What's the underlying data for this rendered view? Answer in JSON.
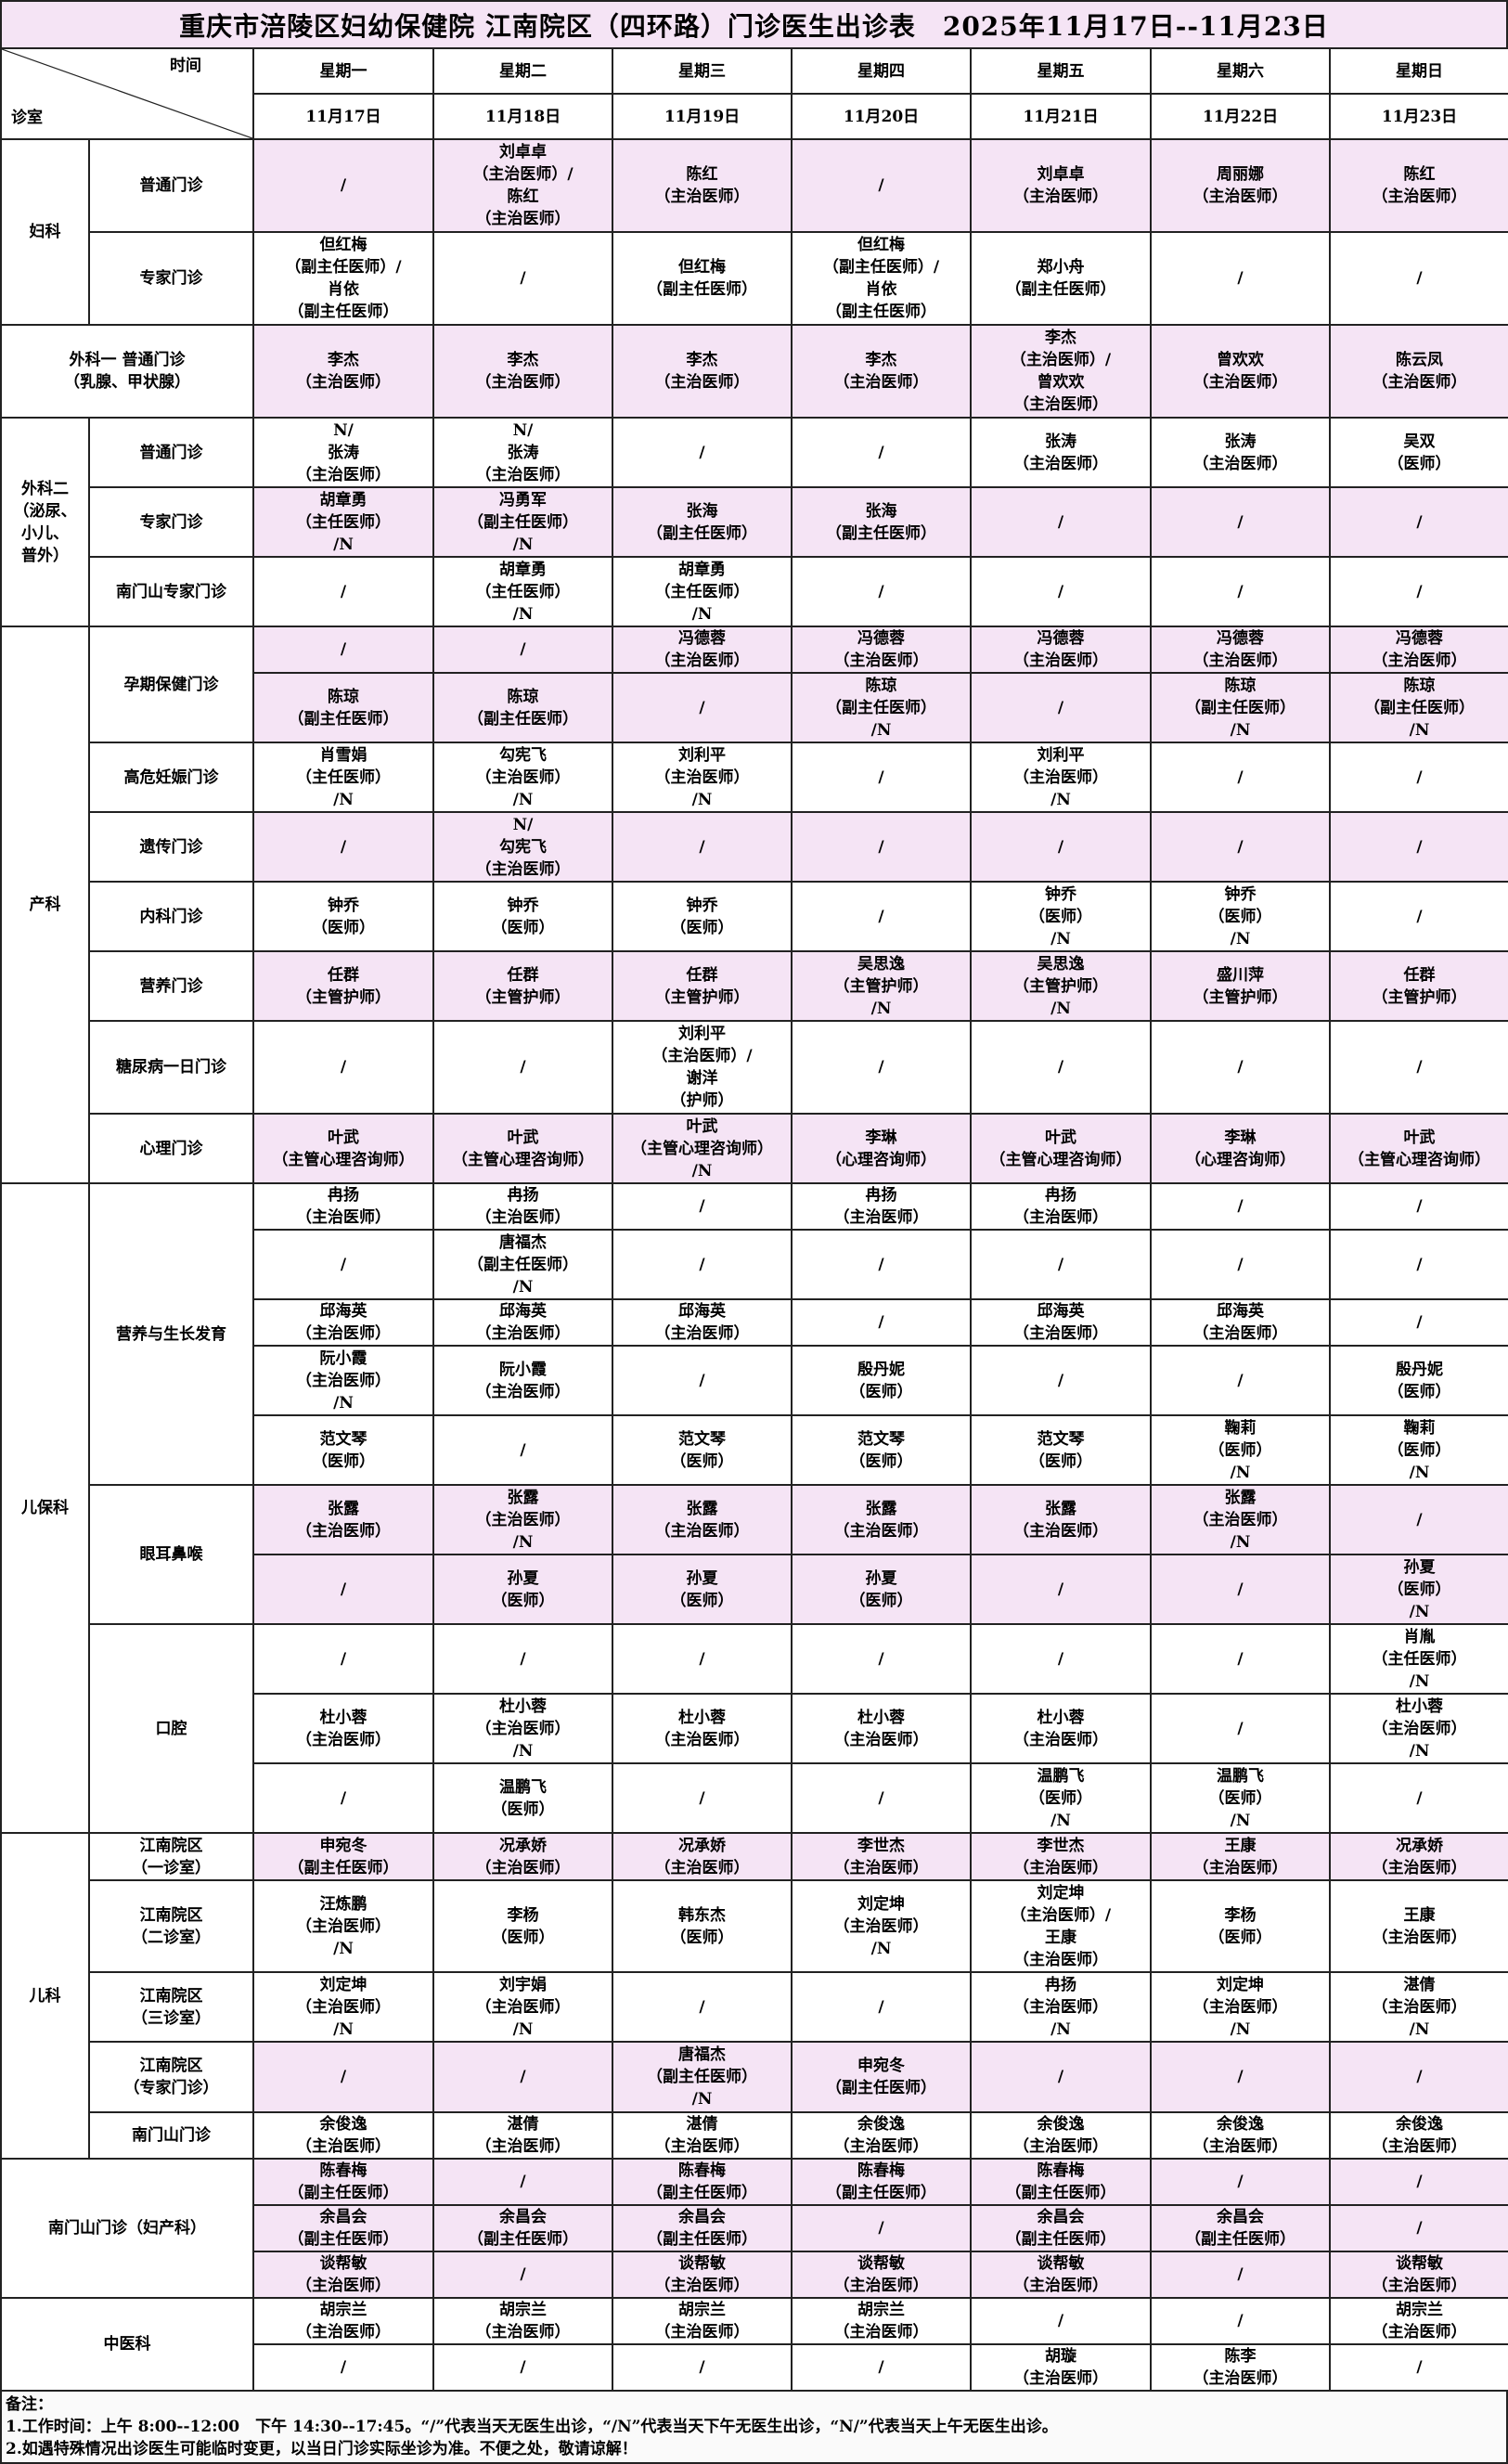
{
  "title": "重庆市涪陵区妇幼保健院 江南院区（四环路）门诊医生出诊表　2025年11月17日--11月23日",
  "header": {
    "corner_top": "时间",
    "corner_bottom": "诊室",
    "weekdays": [
      "星期一",
      "星期二",
      "星期三",
      "星期四",
      "星期五",
      "星期六",
      "星期日"
    ],
    "dates": [
      "11月17日",
      "11月18日",
      "11月19日",
      "11月20日",
      "11月21日",
      "11月22日",
      "11月23日"
    ]
  },
  "colors": {
    "highlight": "#f5e4f5",
    "border": "#222222"
  },
  "departments": [
    {
      "name": "妇科",
      "clinics": [
        {
          "name": "普通门诊",
          "highlight": true,
          "rows": [
            [
              "/",
              "刘卓卓\n（主治医师）/\n陈红\n（主治医师）",
              "陈红\n（主治医师）",
              "/",
              "刘卓卓\n（主治医师）",
              "周丽娜\n（主治医师）",
              "陈红\n（主治医师）"
            ]
          ]
        },
        {
          "name": "专家门诊",
          "highlight": false,
          "rows": [
            [
              "但红梅\n（副主任医师）/\n肖依\n（副主任医师）",
              "/",
              "但红梅\n（副主任医师）",
              "但红梅\n（副主任医师）/\n肖依\n（副主任医师）",
              "郑小舟\n（副主任医师）",
              "/",
              "/"
            ]
          ]
        }
      ]
    },
    {
      "name": "外科一 普通门诊\n（乳腺、甲状腺）",
      "merged": true,
      "clinics": [
        {
          "name": "",
          "highlight": true,
          "rows": [
            [
              "李杰\n（主治医师）",
              "李杰\n（主治医师）",
              "李杰\n（主治医师）",
              "李杰\n（主治医师）",
              "李杰\n（主治医师）/\n曾欢欢\n（主治医师）",
              "曾欢欢\n（主治医师）",
              "陈云凤\n（主治医师）"
            ]
          ]
        }
      ]
    },
    {
      "name": "外科二\n（泌尿、\n小儿、\n普外）",
      "clinics": [
        {
          "name": "普通门诊",
          "highlight": false,
          "rows": [
            [
              "N/\n张涛\n（主治医师）",
              "N/\n张涛\n（主治医师）",
              "/",
              "/",
              "张涛\n（主治医师）",
              "张涛\n（主治医师）",
              "吴双\n（医师）"
            ]
          ]
        },
        {
          "name": "专家门诊",
          "highlight": true,
          "rows": [
            [
              "胡章勇\n（主任医师）\n/N",
              "冯勇军\n（副主任医师）\n/N",
              "张海\n（副主任医师）",
              "张海\n（副主任医师）",
              "/",
              "/",
              "/"
            ]
          ]
        },
        {
          "name": "南门山专家门诊",
          "highlight": false,
          "rows": [
            [
              "/",
              "胡章勇\n（主任医师）\n/N",
              "胡章勇\n（主任医师）\n/N",
              "/",
              "/",
              "/",
              "/"
            ]
          ]
        }
      ]
    },
    {
      "name": "产科",
      "clinics": [
        {
          "name": "孕期保健门诊",
          "highlight": true,
          "rows": [
            [
              "/",
              "/",
              "冯德蓉\n（主治医师）",
              "冯德蓉\n（主治医师）",
              "冯德蓉\n（主治医师）",
              "冯德蓉\n（主治医师）",
              "冯德蓉\n（主治医师）"
            ],
            [
              "陈琼\n（副主任医师）",
              "陈琼\n（副主任医师）",
              "/",
              "陈琼\n（副主任医师）\n/N",
              "/",
              "陈琼\n（副主任医师）\n/N",
              "陈琼\n（副主任医师）\n/N"
            ]
          ]
        },
        {
          "name": "高危妊娠门诊",
          "highlight": false,
          "rows": [
            [
              "肖雪娟\n（主任医师）\n/N",
              "勾宪飞\n（主治医师）\n/N",
              "刘利平\n（主治医师）\n/N",
              "/",
              "刘利平\n（主治医师）\n/N",
              "/",
              "/"
            ]
          ]
        },
        {
          "name": "遗传门诊",
          "highlight": true,
          "rows": [
            [
              "/",
              "N/\n勾宪飞\n（主治医师）",
              "/",
              "/",
              "/",
              "/",
              "/"
            ]
          ]
        },
        {
          "name": "内科门诊",
          "highlight": false,
          "rows": [
            [
              "钟乔\n（医师）",
              "钟乔\n（医师）",
              "钟乔\n（医师）",
              "/",
              "钟乔\n（医师）\n/N",
              "钟乔\n（医师）\n/N",
              "/"
            ]
          ]
        },
        {
          "name": "营养门诊",
          "highlight": true,
          "rows": [
            [
              "任群\n（主管护师）",
              "任群\n（主管护师）",
              "任群\n（主管护师）",
              "吴思逸\n（主管护师）\n/N",
              "吴思逸\n（主管护师）\n/N",
              "盛川萍\n（主管护师）",
              "任群\n（主管护师）"
            ]
          ]
        },
        {
          "name": "糖尿病一日门诊",
          "highlight": false,
          "rows": [
            [
              "/",
              "/",
              "刘利平\n（主治医师）/\n谢洋\n（护师）",
              "/",
              "/",
              "/",
              "/"
            ]
          ]
        },
        {
          "name": "心理门诊",
          "highlight": true,
          "rows": [
            [
              "叶武\n（主管心理咨询师）",
              "叶武\n（主管心理咨询师）",
              "叶武\n（主管心理咨询师）\n/N",
              "李琳\n（心理咨询师）",
              "叶武\n（主管心理咨询师）",
              "李琳\n（心理咨询师）",
              "叶武\n（主管心理咨询师）"
            ]
          ]
        }
      ]
    },
    {
      "name": "儿保科",
      "clinics": [
        {
          "name": "营养与生长发育",
          "highlight": false,
          "rows": [
            [
              "冉扬\n（主治医师）",
              "冉扬\n（主治医师）",
              "/",
              "冉扬\n（主治医师）",
              "冉扬\n（主治医师）",
              "/",
              "/"
            ],
            [
              "/",
              "唐福杰\n（副主任医师）\n/N",
              "/",
              "/",
              "/",
              "/",
              "/"
            ],
            [
              "邱海英\n（主治医师）",
              "邱海英\n（主治医师）",
              "邱海英\n（主治医师）",
              "/",
              "邱海英\n（主治医师）",
              "邱海英\n（主治医师）",
              "/"
            ],
            [
              "阮小霞\n（主治医师）\n/N",
              "阮小霞\n（主治医师）",
              "/",
              "殷丹妮\n（医师）",
              "/",
              "/",
              "殷丹妮\n（医师）"
            ],
            [
              "范文琴\n（医师）",
              "/",
              "范文琴\n（医师）",
              "范文琴\n（医师）",
              "范文琴\n（医师）",
              "鞠莉\n（医师）\n/N",
              "鞠莉\n（医师）\n/N"
            ]
          ]
        },
        {
          "name": "眼耳鼻喉",
          "highlight": true,
          "rows": [
            [
              "张露\n（主治医师）",
              "张露\n（主治医师）\n/N",
              "张露\n（主治医师）",
              "张露\n（主治医师）",
              "张露\n（主治医师）",
              "张露\n（主治医师）\n/N",
              "/"
            ],
            [
              "/",
              "孙夏\n（医师）",
              "孙夏\n（医师）",
              "孙夏\n（医师）",
              "/",
              "/",
              "孙夏\n（医师）\n/N"
            ]
          ]
        },
        {
          "name": "口腔",
          "highlight": false,
          "rows": [
            [
              "/",
              "/",
              "/",
              "/",
              "/",
              "/",
              "肖胤\n（主任医师）\n/N"
            ],
            [
              "杜小蓉\n（主治医师）",
              "杜小蓉\n（主治医师）\n/N",
              "杜小蓉\n（主治医师）",
              "杜小蓉\n（主治医师）",
              "杜小蓉\n（主治医师）",
              "/",
              "杜小蓉\n（主治医师）\n/N"
            ],
            [
              "/",
              "温鹏飞\n（医师）",
              "/",
              "/",
              "温鹏飞\n（医师）\n/N",
              "温鹏飞\n（医师）\n/N",
              "/"
            ]
          ]
        }
      ]
    },
    {
      "name": "儿科",
      "clinics": [
        {
          "name": "江南院区\n（一诊室）",
          "highlight": true,
          "rows": [
            [
              "申宛冬\n（副主任医师）",
              "况承娇\n（主治医师）",
              "况承娇\n（主治医师）",
              "李世杰\n（主治医师）",
              "李世杰\n（主治医师）",
              "王康\n（主治医师）",
              "况承娇\n（主治医师）"
            ]
          ]
        },
        {
          "name": "江南院区\n（二诊室）",
          "highlight": false,
          "rows": [
            [
              "汪炼鹏\n（主治医师）\n/N",
              "李杨\n（医师）",
              "韩东杰\n（医师）",
              "刘定坤\n（主治医师）\n/N",
              "刘定坤\n（主治医师）/\n王康\n（主治医师）",
              "李杨\n（医师）",
              "王康\n（主治医师）"
            ]
          ]
        },
        {
          "name": "江南院区\n（三诊室）",
          "highlight": false,
          "rows": [
            [
              "刘定坤\n（主治医师）\n/N",
              "刘宇娟\n（主治医师）\n/N",
              "/",
              "/",
              "冉扬\n（主治医师）\n/N",
              "刘定坤\n（主治医师）\n/N",
              "湛倩\n（主治医师）\n/N"
            ]
          ]
        },
        {
          "name": "江南院区\n（专家门诊）",
          "highlight": true,
          "rows": [
            [
              "/",
              "/",
              "唐福杰\n（副主任医师）\n/N",
              "申宛冬\n（副主任医师）",
              "/",
              "/",
              "/"
            ]
          ]
        },
        {
          "name": "南门山门诊",
          "highlight": false,
          "rows": [
            [
              "余俊逸\n（主治医师）",
              "湛倩\n（主治医师）",
              "湛倩\n（主治医师）",
              "余俊逸\n（主治医师）",
              "余俊逸\n（主治医师）",
              "余俊逸\n（主治医师）",
              "余俊逸\n（主治医师）"
            ]
          ]
        }
      ]
    },
    {
      "name": "南门山门诊（妇产科）",
      "merged": true,
      "clinics": [
        {
          "name": "",
          "highlight": true,
          "rows": [
            [
              "陈春梅\n（副主任医师）",
              "/",
              "陈春梅\n（副主任医师）",
              "陈春梅\n（副主任医师）",
              "陈春梅\n（副主任医师）",
              "/",
              "/"
            ],
            [
              "余昌会\n（副主任医师）",
              "余昌会\n（副主任医师）",
              "余昌会\n（副主任医师）",
              "/",
              "余昌会\n（副主任医师）",
              "余昌会\n（副主任医师）",
              "/"
            ],
            [
              "谈帮敏\n（主治医师）",
              "/",
              "谈帮敏\n（主治医师）",
              "谈帮敏\n（主治医师）",
              "谈帮敏\n（主治医师）",
              "/",
              "谈帮敏\n（主治医师）"
            ]
          ]
        }
      ]
    },
    {
      "name": "中医科",
      "merged": true,
      "clinics": [
        {
          "name": "",
          "highlight": false,
          "rows": [
            [
              "胡宗兰\n（主治医师）",
              "胡宗兰\n（主治医师）",
              "胡宗兰\n（主治医师）",
              "胡宗兰\n（主治医师）",
              "/",
              "/",
              "胡宗兰\n（主治医师）"
            ],
            [
              "/",
              "/",
              "/",
              "/",
              "胡璇\n（主治医师）",
              "陈李\n（主治医师）",
              "/"
            ]
          ]
        }
      ]
    }
  ],
  "notes": {
    "heading": "备注：",
    "lines": [
      "1.工作时间：上午 8:00--12:00　下午 14:30--17:45。“/”代表当天无医生出诊，“/N”代表当天下午无医生出诊，“N/”代表当天上午无医生出诊。",
      "2.如遇特殊情况出诊医生可能临时变更，以当日门诊实际坐诊为准。不便之处，敬请谅解！"
    ]
  }
}
